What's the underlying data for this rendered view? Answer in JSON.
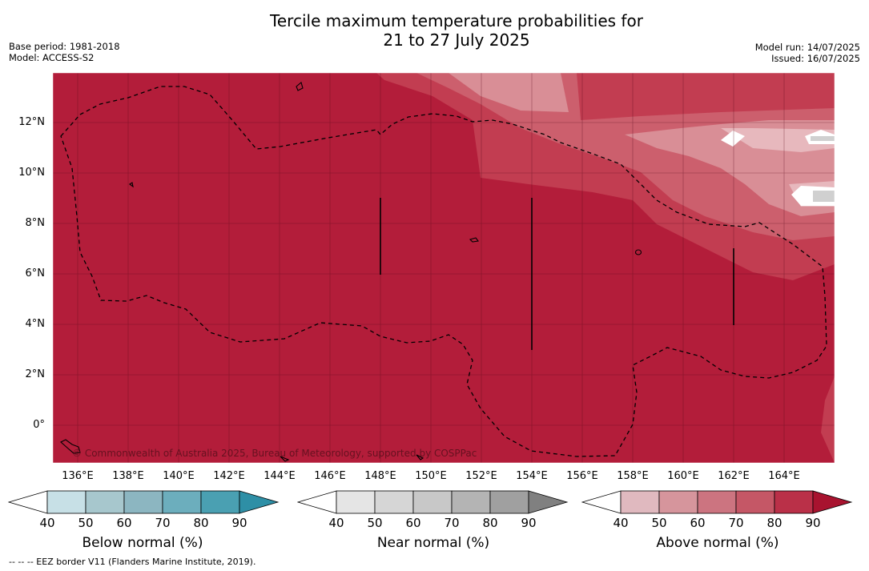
{
  "header": {
    "title_line1": "Tercile maximum temperature probabilities for",
    "title_line2": "21 to 27 July 2025",
    "base_period": "Base period: 1981-2018",
    "model": "Model: ACCESS-S2",
    "model_run": "Model run: 14/07/2025",
    "issued": "Issued: 16/07/2025"
  },
  "map": {
    "lat_labels": [
      "12°N",
      "10°N",
      "8°N",
      "6°N",
      "4°N",
      "2°N",
      "0°"
    ],
    "lon_labels": [
      "136°E",
      "138°E",
      "140°E",
      "142°E",
      "144°E",
      "146°E",
      "148°E",
      "150°E",
      "152°E",
      "154°E",
      "156°E",
      "158°E",
      "160°E",
      "162°E",
      "164°E"
    ],
    "copyright": "© Commonwealth of Australia 2025, Bureau of Meteorology, supported by COSPPac",
    "background_color": "#b31d3a"
  },
  "colorbars": [
    {
      "title": "Below normal (%)",
      "ticks": [
        "40",
        "50",
        "60",
        "70",
        "80",
        "90"
      ],
      "colors": [
        "#ffffff",
        "#c7e0e6",
        "#a7c7cd",
        "#8cb6c1",
        "#6caebd",
        "#4aa0b2",
        "#2e8fa6"
      ]
    },
    {
      "title": "Near normal (%)",
      "ticks": [
        "40",
        "50",
        "60",
        "70",
        "80",
        "90"
      ],
      "colors": [
        "#ffffff",
        "#e5e5e5",
        "#d6d6d6",
        "#c8c8c8",
        "#b4b4b4",
        "#a0a0a0",
        "#808080"
      ]
    },
    {
      "title": "Above normal (%)",
      "ticks": [
        "40",
        "50",
        "60",
        "70",
        "80",
        "90"
      ],
      "colors": [
        "#ffffff",
        "#e0b9bf",
        "#d6959c",
        "#cc7480",
        "#c55766",
        "#ba3048",
        "#a8132f"
      ]
    }
  ],
  "footnote": "--  --  -- EEZ border V11 (Flanders Marine Institute, 2019)."
}
